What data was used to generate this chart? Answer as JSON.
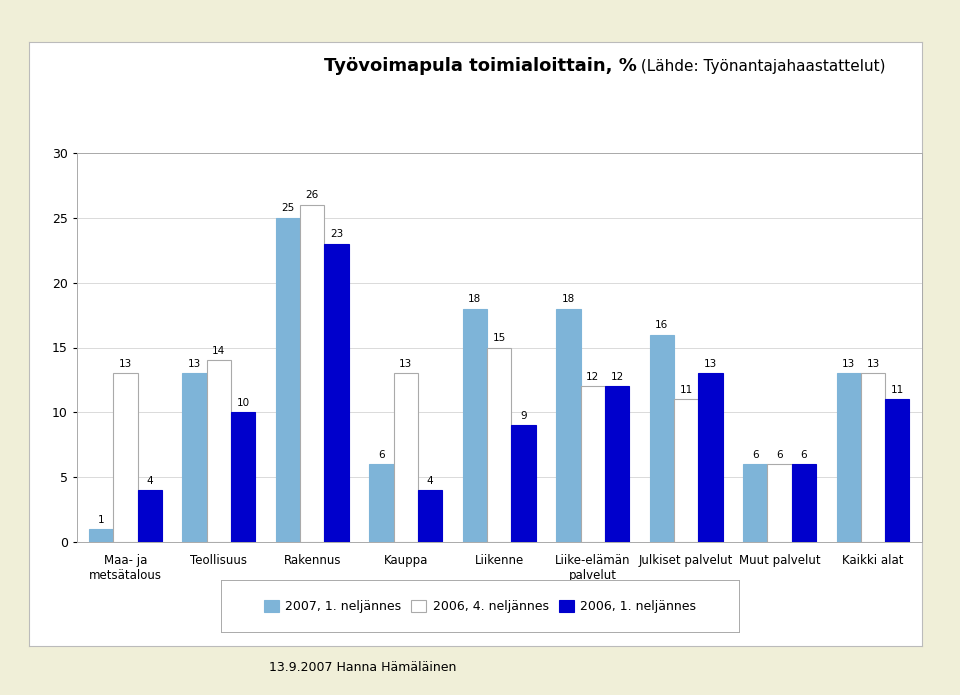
{
  "title_bold": "Työvoimapula toimialoittain, %",
  "title_normal": " (Lähde: Työnantajahaastattelut)",
  "categories": [
    "Maa- ja\nmetsätalous",
    "Teollisuus",
    "Rakennus",
    "Kauppa",
    "Liikenne",
    "Liike-elämän\npalvelut",
    "Julkiset palvelut",
    "Muut palvelut",
    "Kaikki alat"
  ],
  "series": {
    "2007, 1. neljännes": [
      1,
      13,
      25,
      6,
      18,
      18,
      16,
      6,
      13
    ],
    "2006, 4. neljännes": [
      13,
      14,
      26,
      13,
      15,
      12,
      11,
      6,
      13
    ],
    "2006, 1. neljännes": [
      4,
      10,
      23,
      4,
      9,
      12,
      13,
      6,
      11
    ]
  },
  "colors": {
    "2007, 1. neljännes": "#7EB4D8",
    "2006, 4. neljännes": "#FFFFFF",
    "2006, 1. neljännes": "#0000CC"
  },
  "edge_colors": {
    "2007, 1. neljännes": "#7EB4D8",
    "2006, 4. neljännes": "#AAAAAA",
    "2006, 1. neljännes": "#0000CC"
  },
  "ylim": [
    0,
    30
  ],
  "yticks": [
    0,
    5,
    10,
    15,
    20,
    25,
    30
  ],
  "footer": "13.9.2007 Hanna Hämäläinen",
  "bar_width": 0.26
}
